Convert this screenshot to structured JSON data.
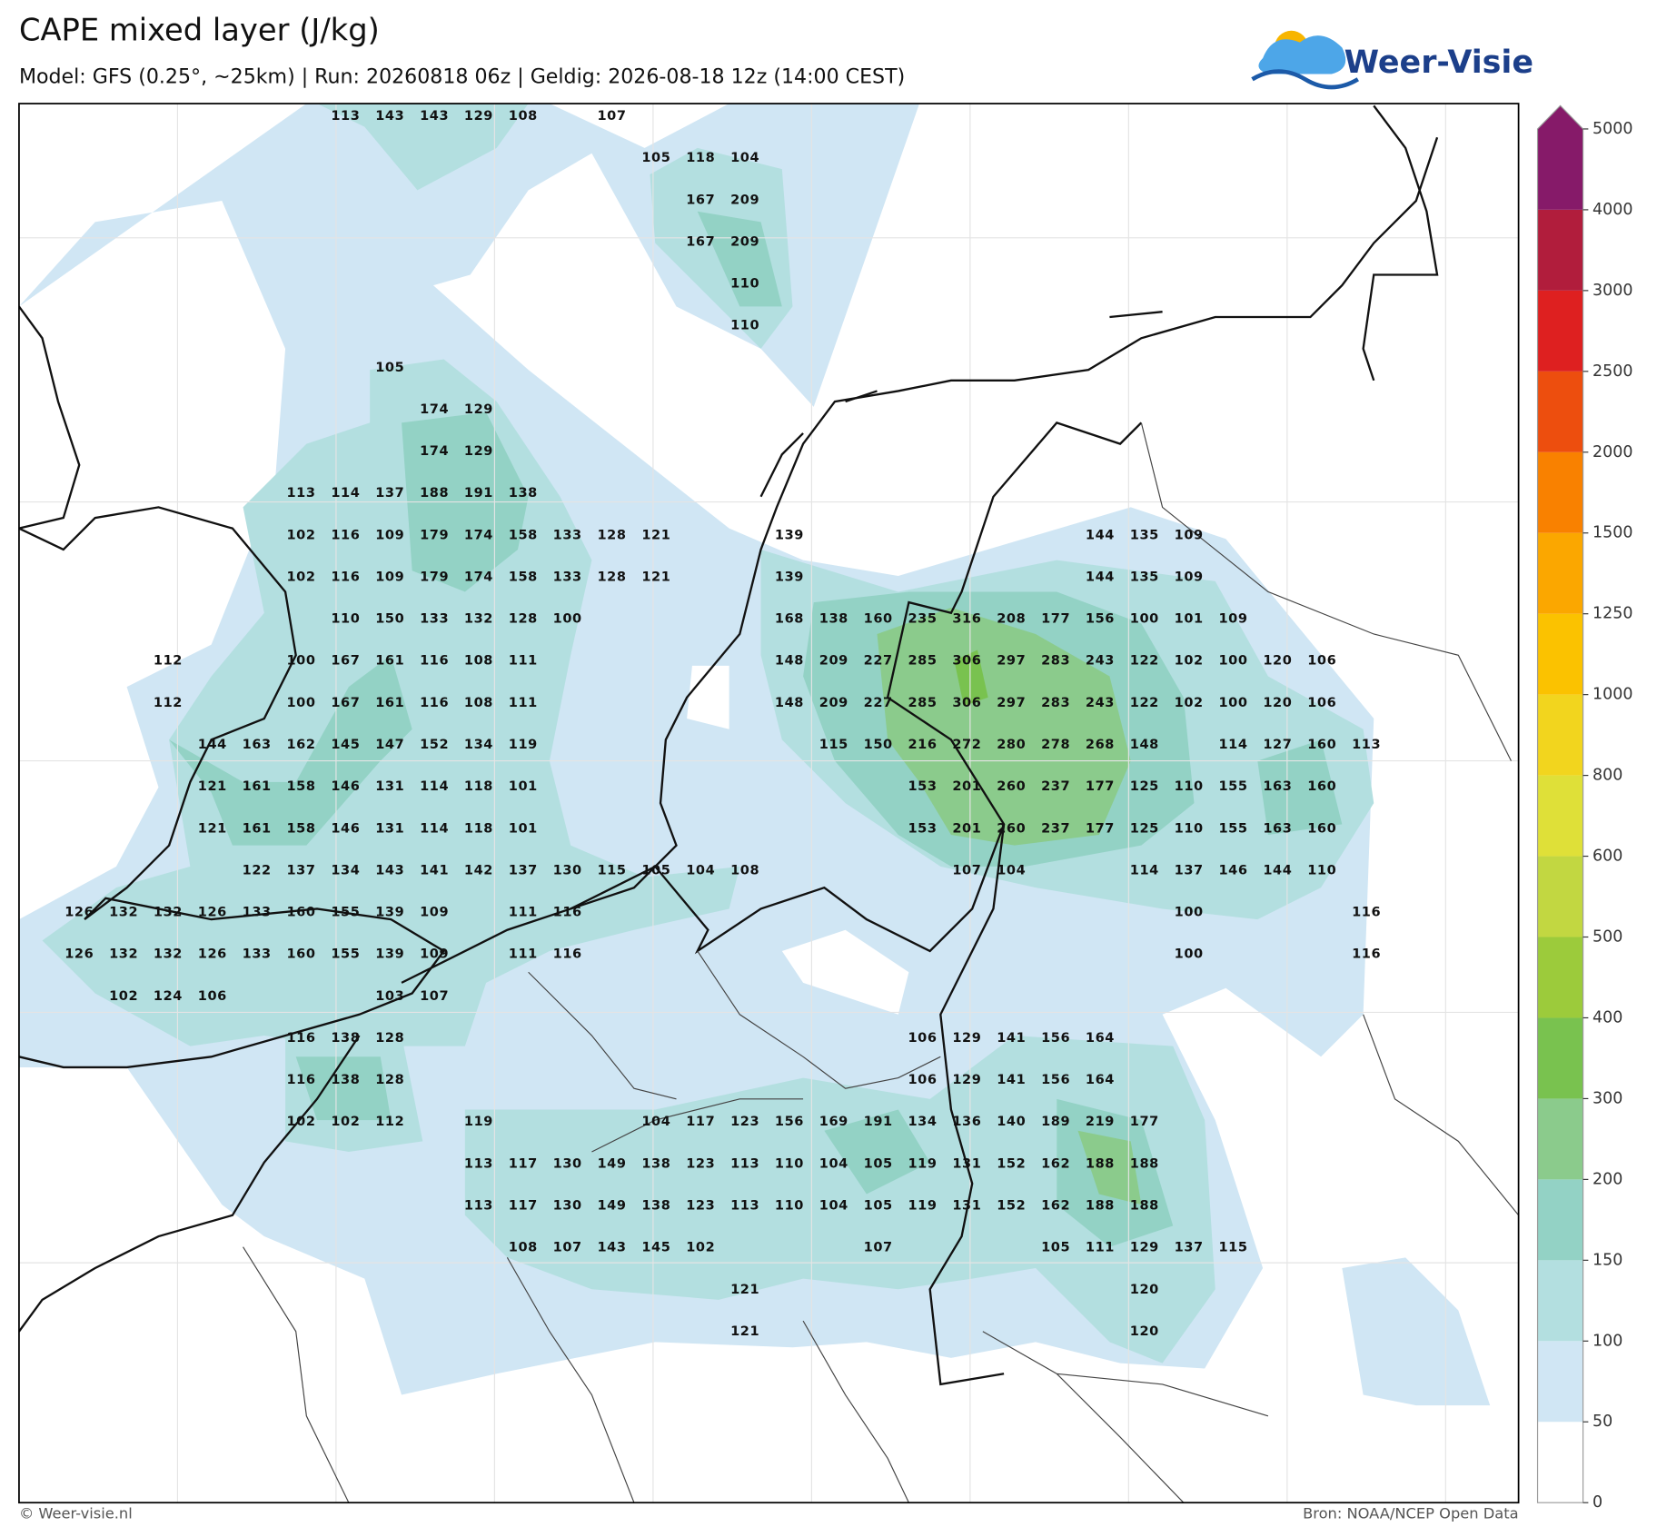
{
  "header": {
    "title": "CAPE mixed layer (J/kg)",
    "subtitle": "Model: GFS (0.25°, ~25km)  |  Run: 20260818 06z  |  Geldig: 2026-08-18 12z (14:00 CEST)",
    "logo": "Weer-Visie"
  },
  "colorbar": {
    "ticks": [
      0,
      50,
      100,
      150,
      200,
      300,
      400,
      500,
      600,
      800,
      1000,
      1250,
      1500,
      2000,
      2500,
      3000,
      4000,
      5000
    ],
    "colors": [
      "#ffffff",
      "#d0e6f4",
      "#b3dfe0",
      "#93d2c5",
      "#8bcb8c",
      "#79c24f",
      "#9ccb3b",
      "#c2d741",
      "#dfe038",
      "#f2d51e",
      "#fbc200",
      "#fba700",
      "#f98100",
      "#ed4e0e",
      "#de2020",
      "#b11d3c",
      "#861a69"
    ]
  },
  "grid": {
    "rows": [
      [
        null,
        null,
        null,
        null,
        null,
        null,
        113,
        143,
        143,
        129,
        108,
        null,
        107,
        null,
        null,
        null,
        null,
        null,
        null,
        null,
        null,
        null,
        null,
        null,
        null,
        null,
        null,
        null,
        null,
        null
      ],
      [
        null,
        null,
        null,
        null,
        null,
        null,
        null,
        null,
        null,
        null,
        null,
        null,
        null,
        105,
        118,
        104,
        null,
        null,
        null,
        null,
        null,
        null,
        null,
        null,
        null,
        null,
        null,
        null,
        null,
        null
      ],
      [
        null,
        null,
        null,
        null,
        null,
        null,
        null,
        null,
        null,
        null,
        null,
        null,
        null,
        null,
        167,
        209,
        null,
        null,
        null,
        null,
        null,
        null,
        null,
        null,
        null,
        null,
        null,
        null,
        null,
        null
      ],
      [
        null,
        null,
        null,
        null,
        null,
        null,
        null,
        null,
        null,
        null,
        null,
        null,
        null,
        null,
        167,
        209,
        null,
        null,
        null,
        null,
        null,
        null,
        null,
        null,
        null,
        null,
        null,
        null,
        null,
        null
      ],
      [
        null,
        null,
        null,
        null,
        null,
        null,
        null,
        null,
        null,
        null,
        null,
        null,
        null,
        null,
        null,
        110,
        null,
        null,
        null,
        null,
        null,
        null,
        null,
        null,
        null,
        null,
        null,
        null,
        null,
        null
      ],
      [
        null,
        null,
        null,
        null,
        null,
        null,
        null,
        null,
        null,
        null,
        null,
        null,
        null,
        null,
        null,
        110,
        null,
        null,
        null,
        null,
        null,
        null,
        null,
        null,
        null,
        null,
        null,
        null,
        null,
        null
      ],
      [
        null,
        null,
        null,
        null,
        null,
        null,
        null,
        105,
        null,
        null,
        null,
        null,
        null,
        null,
        null,
        null,
        null,
        null,
        null,
        null,
        null,
        null,
        null,
        null,
        null,
        null,
        null,
        null,
        null,
        null
      ],
      [
        null,
        null,
        null,
        null,
        null,
        null,
        null,
        null,
        174,
        129,
        null,
        null,
        null,
        null,
        null,
        null,
        null,
        null,
        null,
        null,
        null,
        null,
        null,
        null,
        null,
        null,
        null,
        null,
        null,
        null
      ],
      [
        null,
        null,
        null,
        null,
        null,
        null,
        null,
        null,
        174,
        129,
        null,
        null,
        null,
        null,
        null,
        null,
        null,
        null,
        null,
        null,
        null,
        null,
        null,
        null,
        null,
        null,
        null,
        null,
        null,
        null
      ],
      [
        null,
        null,
        null,
        null,
        null,
        113,
        114,
        137,
        188,
        191,
        138,
        null,
        null,
        null,
        null,
        null,
        null,
        null,
        null,
        null,
        null,
        null,
        null,
        null,
        null,
        null,
        null,
        null,
        null,
        null
      ],
      [
        null,
        null,
        null,
        null,
        null,
        102,
        116,
        109,
        179,
        174,
        158,
        133,
        128,
        121,
        null,
        null,
        139,
        null,
        null,
        null,
        null,
        null,
        null,
        144,
        135,
        109,
        null,
        null,
        null,
        null
      ],
      [
        null,
        null,
        null,
        null,
        null,
        102,
        116,
        109,
        179,
        174,
        158,
        133,
        128,
        121,
        null,
        null,
        139,
        null,
        null,
        null,
        null,
        null,
        null,
        144,
        135,
        109,
        null,
        null,
        null,
        null
      ],
      [
        null,
        null,
        null,
        null,
        null,
        null,
        110,
        150,
        133,
        132,
        128,
        100,
        null,
        null,
        null,
        null,
        168,
        138,
        160,
        235,
        316,
        208,
        177,
        156,
        100,
        101,
        109,
        null,
        null,
        null
      ],
      [
        null,
        null,
        112,
        null,
        null,
        100,
        167,
        161,
        116,
        108,
        111,
        null,
        null,
        null,
        null,
        null,
        148,
        209,
        227,
        285,
        306,
        297,
        283,
        243,
        122,
        102,
        100,
        120,
        106,
        null
      ],
      [
        null,
        null,
        112,
        null,
        null,
        100,
        167,
        161,
        116,
        108,
        111,
        null,
        null,
        null,
        null,
        null,
        148,
        209,
        227,
        285,
        306,
        297,
        283,
        243,
        122,
        102,
        100,
        120,
        106,
        null
      ],
      [
        null,
        null,
        null,
        144,
        163,
        162,
        145,
        147,
        152,
        134,
        119,
        null,
        null,
        null,
        null,
        null,
        null,
        115,
        150,
        216,
        272,
        280,
        278,
        268,
        148,
        null,
        114,
        127,
        160,
        113
      ],
      [
        null,
        null,
        null,
        121,
        161,
        158,
        146,
        131,
        114,
        118,
        101,
        null,
        null,
        null,
        null,
        null,
        null,
        null,
        null,
        153,
        201,
        260,
        237,
        177,
        125,
        110,
        155,
        163,
        160,
        null
      ],
      [
        null,
        null,
        null,
        121,
        161,
        158,
        146,
        131,
        114,
        118,
        101,
        null,
        null,
        null,
        null,
        null,
        null,
        null,
        null,
        153,
        201,
        260,
        237,
        177,
        125,
        110,
        155,
        163,
        160,
        null
      ],
      [
        null,
        null,
        null,
        null,
        122,
        137,
        134,
        143,
        141,
        142,
        137,
        130,
        115,
        105,
        104,
        108,
        null,
        null,
        null,
        null,
        107,
        104,
        null,
        null,
        114,
        137,
        146,
        144,
        110,
        null
      ],
      [
        126,
        132,
        132,
        126,
        133,
        160,
        155,
        139,
        109,
        null,
        111,
        116,
        null,
        null,
        null,
        null,
        null,
        null,
        null,
        null,
        null,
        null,
        null,
        null,
        null,
        100,
        null,
        null,
        null,
        116
      ],
      [
        126,
        132,
        132,
        126,
        133,
        160,
        155,
        139,
        109,
        null,
        111,
        116,
        null,
        null,
        null,
        null,
        null,
        null,
        null,
        null,
        null,
        null,
        null,
        null,
        null,
        100,
        null,
        null,
        null,
        116
      ],
      [
        null,
        102,
        124,
        106,
        null,
        null,
        null,
        103,
        107,
        null,
        null,
        null,
        null,
        null,
        null,
        null,
        null,
        null,
        null,
        null,
        null,
        null,
        null,
        null,
        null,
        null,
        null,
        null,
        null,
        null
      ],
      [
        null,
        null,
        null,
        null,
        null,
        116,
        138,
        128,
        null,
        null,
        null,
        null,
        null,
        null,
        null,
        null,
        null,
        null,
        null,
        106,
        129,
        141,
        156,
        164,
        null,
        null,
        null,
        null,
        null,
        null
      ],
      [
        null,
        null,
        null,
        null,
        null,
        116,
        138,
        128,
        null,
        null,
        null,
        null,
        null,
        null,
        null,
        null,
        null,
        null,
        null,
        106,
        129,
        141,
        156,
        164,
        null,
        null,
        null,
        null,
        null,
        null
      ],
      [
        null,
        null,
        null,
        null,
        null,
        102,
        102,
        112,
        null,
        119,
        null,
        null,
        null,
        104,
        117,
        123,
        156,
        169,
        191,
        134,
        136,
        140,
        189,
        219,
        177,
        null,
        null,
        null,
        null,
        null
      ],
      [
        null,
        null,
        null,
        null,
        null,
        null,
        null,
        null,
        null,
        113,
        117,
        130,
        149,
        138,
        123,
        113,
        110,
        104,
        105,
        119,
        131,
        152,
        162,
        188,
        188,
        null,
        null,
        null,
        null,
        null
      ],
      [
        null,
        null,
        null,
        null,
        null,
        null,
        null,
        null,
        null,
        113,
        117,
        130,
        149,
        138,
        123,
        113,
        110,
        104,
        105,
        119,
        131,
        152,
        162,
        188,
        188,
        null,
        null,
        null,
        null,
        null
      ],
      [
        null,
        null,
        null,
        null,
        null,
        null,
        null,
        null,
        null,
        null,
        108,
        107,
        143,
        145,
        102,
        null,
        null,
        null,
        107,
        null,
        null,
        null,
        105,
        111,
        129,
        137,
        115,
        null,
        null,
        null
      ],
      [
        null,
        null,
        null,
        null,
        null,
        null,
        null,
        null,
        null,
        null,
        null,
        null,
        null,
        null,
        null,
        121,
        null,
        null,
        null,
        null,
        null,
        null,
        null,
        null,
        120,
        null,
        null,
        null,
        null,
        null
      ],
      [
        null,
        null,
        null,
        null,
        null,
        null,
        null,
        null,
        null,
        null,
        null,
        null,
        null,
        null,
        null,
        121,
        null,
        null,
        null,
        null,
        null,
        null,
        null,
        null,
        120,
        null,
        null,
        null,
        null,
        null
      ]
    ]
  },
  "footer": {
    "left": "© Weer-visie.nl",
    "right": "Bron: NOAA/NCEP Open Data"
  }
}
